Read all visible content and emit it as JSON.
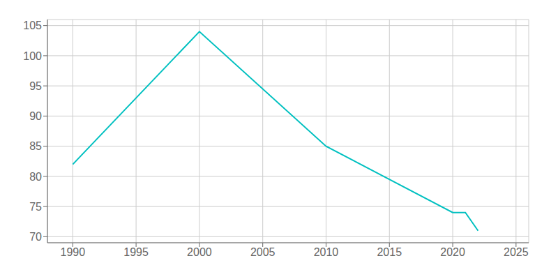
{
  "chart_data": {
    "type": "line",
    "x": [
      1990,
      2000,
      2010,
      2020,
      2021,
      2022
    ],
    "values": [
      82,
      104,
      85,
      74,
      74,
      71
    ],
    "color": "#00c0c0",
    "xlim": [
      1988,
      2026
    ],
    "ylim": [
      69,
      106
    ],
    "xticks": [
      1990,
      1995,
      2000,
      2005,
      2010,
      2015,
      2020,
      2025
    ],
    "yticks": [
      70,
      75,
      80,
      85,
      90,
      95,
      100,
      105
    ],
    "grid": true
  }
}
